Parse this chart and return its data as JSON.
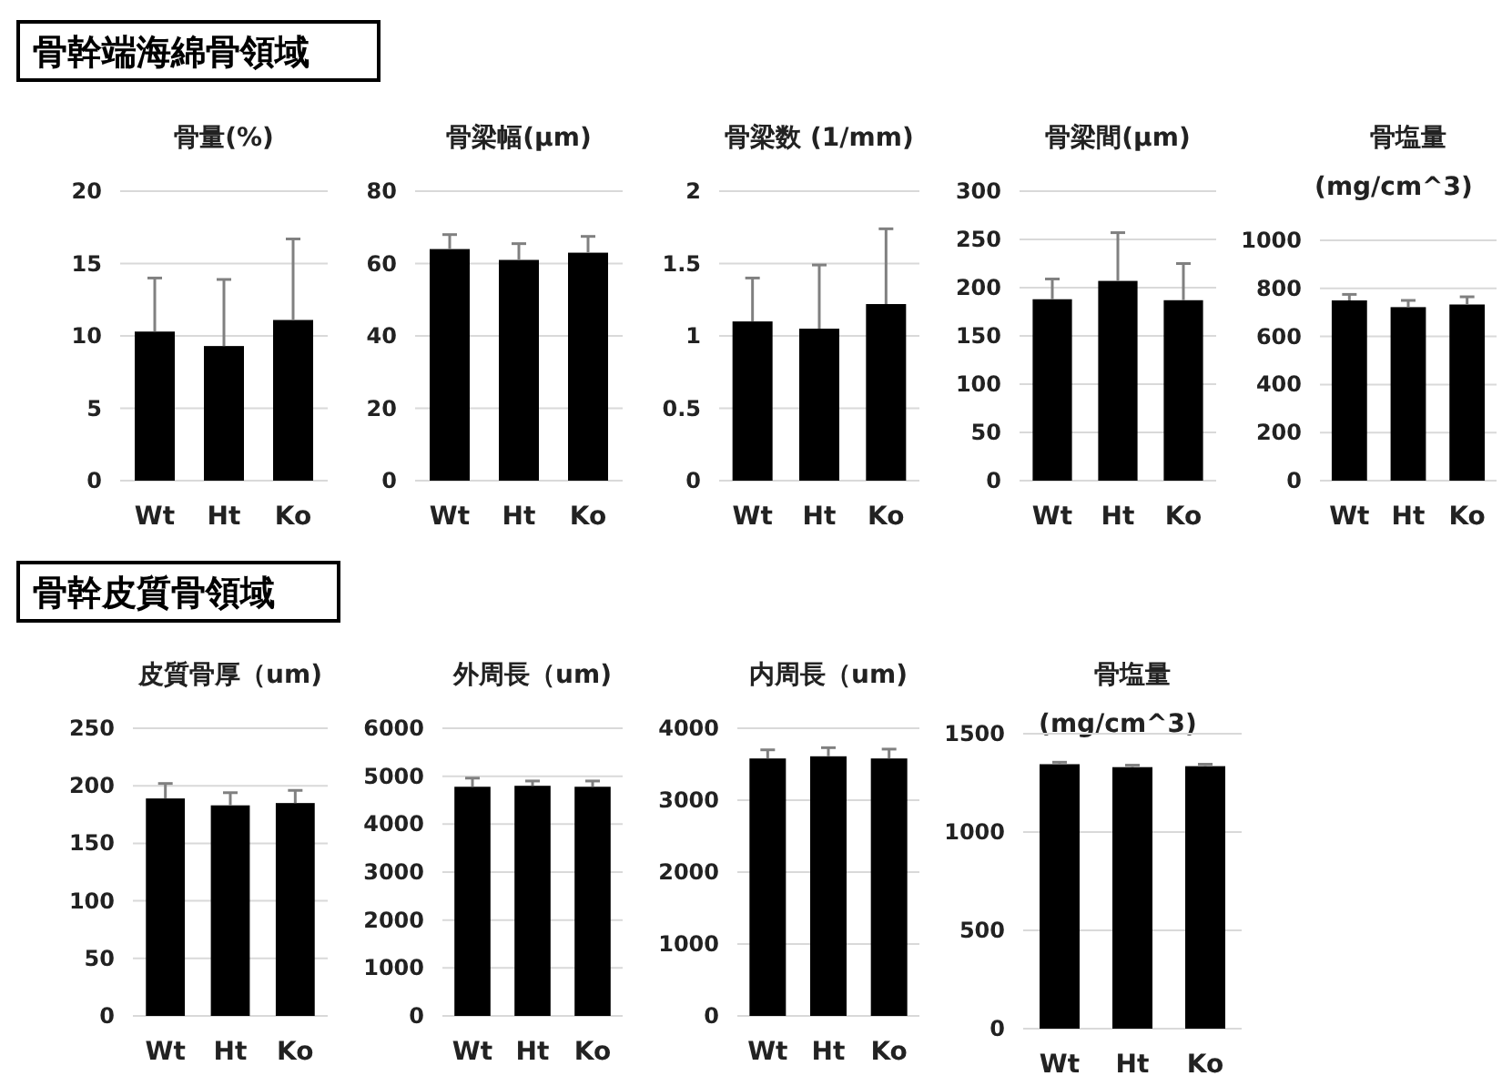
{
  "chart_data": [
    {
      "type": "other",
      "title": "骨幹端海綿骨領域"
    },
    {
      "type": "bar",
      "title": "骨量(%)",
      "categories": [
        "Wt",
        "Ht",
        "Ko"
      ],
      "values": [
        10.3,
        9.3,
        11.1
      ],
      "errors": [
        [
          10.3,
          14
        ],
        [
          9.3,
          13.9
        ],
        [
          11.1,
          16.7
        ]
      ],
      "color": "#000000",
      "ylim": [
        0,
        20
      ],
      "yticks": [
        0,
        5,
        10,
        15,
        20
      ],
      "grid": "y"
    },
    {
      "type": "bar",
      "title": "骨梁幅(μm)",
      "categories": [
        "Wt",
        "Ht",
        "Ko"
      ],
      "values": [
        64,
        61,
        63
      ],
      "errors": [
        [
          64,
          68
        ],
        [
          61,
          65.5
        ],
        [
          63,
          67.5
        ]
      ],
      "color": "#000000",
      "ylim": [
        0,
        80
      ],
      "yticks": [
        0,
        20,
        40,
        60,
        80
      ],
      "grid": "y"
    },
    {
      "type": "bar",
      "title": "骨梁数 (1/mm)",
      "categories": [
        "Wt",
        "Ht",
        "Ko"
      ],
      "values": [
        1.1,
        1.05,
        1.22
      ],
      "errors": [
        [
          1.1,
          1.4
        ],
        [
          1.05,
          1.49
        ],
        [
          1.22,
          1.74
        ]
      ],
      "color": "#000000",
      "ylim": [
        0,
        2
      ],
      "yticks": [
        0,
        0.5,
        1,
        1.5,
        2
      ],
      "grid": "y"
    },
    {
      "type": "bar",
      "title": "骨梁間(μm)",
      "categories": [
        "Wt",
        "Ht",
        "Ko"
      ],
      "values": [
        188,
        207,
        187
      ],
      "errors": [
        [
          188,
          209
        ],
        [
          207,
          257
        ],
        [
          187,
          225
        ]
      ],
      "color": "#000000",
      "ylim": [
        0,
        300
      ],
      "yticks": [
        0,
        50,
        100,
        150,
        200,
        250,
        300
      ],
      "grid": "y"
    },
    {
      "type": "bar",
      "title": "骨塩量",
      "subtitle": "(mg/cm^3)",
      "categories": [
        "Wt",
        "Ht",
        "Ko"
      ],
      "values": [
        750,
        722,
        733
      ],
      "errors": [
        [
          750,
          775
        ],
        [
          722,
          750
        ],
        [
          733,
          765
        ]
      ],
      "color": "#000000",
      "ylim": [
        0,
        1000
      ],
      "yticks": [
        0,
        200,
        400,
        600,
        800,
        1000
      ],
      "grid": "y"
    },
    {
      "type": "other",
      "title": "骨幹皮質骨領域"
    },
    {
      "type": "bar",
      "title": "皮質骨厚（um)",
      "categories": [
        "Wt",
        "Ht",
        "Ko"
      ],
      "values": [
        189,
        183,
        185
      ],
      "errors": [
        [
          189,
          202
        ],
        [
          183,
          194
        ],
        [
          185,
          196
        ]
      ],
      "color": "#000000",
      "ylim": [
        0,
        250
      ],
      "yticks": [
        0,
        50,
        100,
        150,
        200,
        250
      ],
      "grid": "y"
    },
    {
      "type": "bar",
      "title": "外周長（um)",
      "categories": [
        "Wt",
        "Ht",
        "Ko"
      ],
      "values": [
        4780,
        4800,
        4780
      ],
      "errors": [
        [
          4780,
          4960
        ],
        [
          4800,
          4900
        ],
        [
          4780,
          4900
        ]
      ],
      "color": "#000000",
      "ylim": [
        0,
        6000
      ],
      "yticks": [
        0,
        1000,
        2000,
        3000,
        4000,
        5000,
        6000
      ],
      "grid": "y"
    },
    {
      "type": "bar",
      "title": "内周長（um)",
      "categories": [
        "Wt",
        "Ht",
        "Ko"
      ],
      "values": [
        3580,
        3610,
        3580
      ],
      "errors": [
        [
          3580,
          3700
        ],
        [
          3610,
          3730
        ],
        [
          3580,
          3710
        ]
      ],
      "color": "#000000",
      "ylim": [
        0,
        4000
      ],
      "yticks": [
        0,
        1000,
        2000,
        3000,
        4000
      ],
      "grid": "y"
    },
    {
      "type": "bar",
      "title": "骨塩量",
      "subtitle": "(mg/cm^3)",
      "categories": [
        "Wt",
        "Ht",
        "Ko"
      ],
      "values": [
        1345,
        1330,
        1335
      ],
      "errors": [
        [
          1345,
          1355
        ],
        [
          1330,
          1340
        ],
        [
          1335,
          1345
        ]
      ],
      "color": "#000000",
      "ylim": [
        0,
        1500
      ],
      "yticks": [
        0,
        500,
        1000,
        1500
      ],
      "grid": "y"
    }
  ]
}
